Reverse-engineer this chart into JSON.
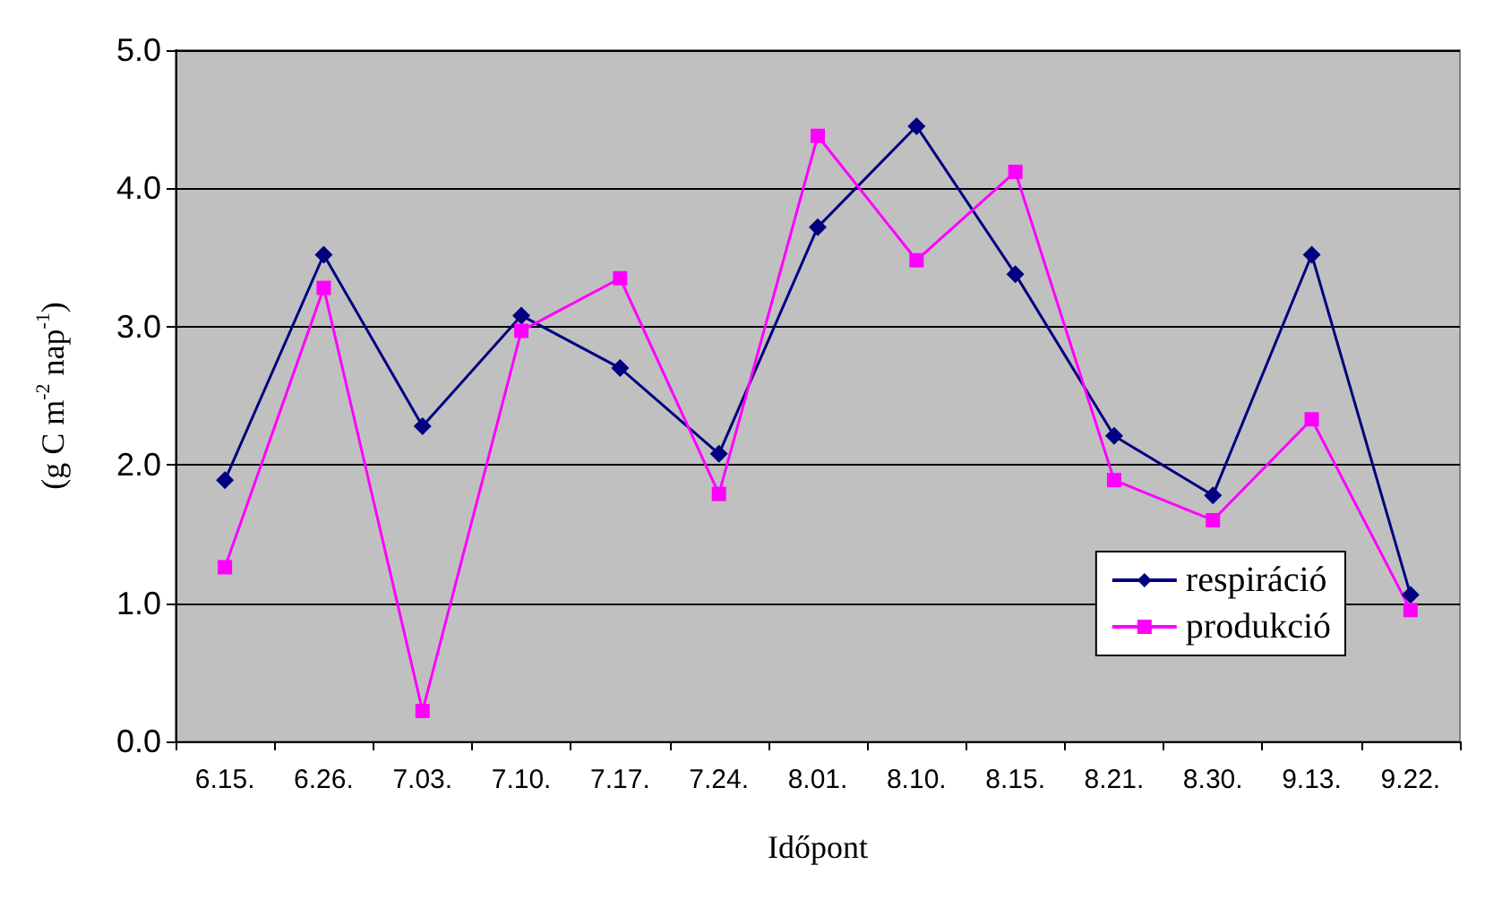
{
  "chart_data": {
    "type": "line",
    "xlabel": "Időpont",
    "ylabel": "(g C m$^{-2}$ nap$^{-1}$)",
    "categories": [
      "6.15.",
      "6.26.",
      "7.03.",
      "7.10.",
      "7.17.",
      "7.24.",
      "8.01.",
      "8.10.",
      "8.15.",
      "8.21.",
      "8.30.",
      "9.13.",
      "9.22."
    ],
    "series": [
      {
        "name": "respiráció",
        "color": "#000080",
        "marker": "diamond",
        "values": [
          1.89,
          3.52,
          2.28,
          3.08,
          2.7,
          2.08,
          3.72,
          4.45,
          3.38,
          2.21,
          1.78,
          3.52,
          1.06
        ]
      },
      {
        "name": "produkció",
        "color": "#ff00ff",
        "marker": "square",
        "values": [
          1.26,
          3.28,
          0.22,
          2.97,
          3.35,
          1.79,
          4.38,
          3.48,
          4.12,
          1.89,
          1.6,
          2.33,
          0.95
        ]
      }
    ],
    "ylim": [
      0,
      5
    ],
    "yticks": [
      {
        "value": 0,
        "label": "0.0"
      },
      {
        "value": 1,
        "label": "1.0"
      },
      {
        "value": 2,
        "label": "2.0"
      },
      {
        "value": 3,
        "label": "3.0"
      },
      {
        "value": 4,
        "label": "4.0"
      },
      {
        "value": 5,
        "label": "5.0"
      }
    ],
    "grid": "y",
    "legend": "bottom right"
  }
}
